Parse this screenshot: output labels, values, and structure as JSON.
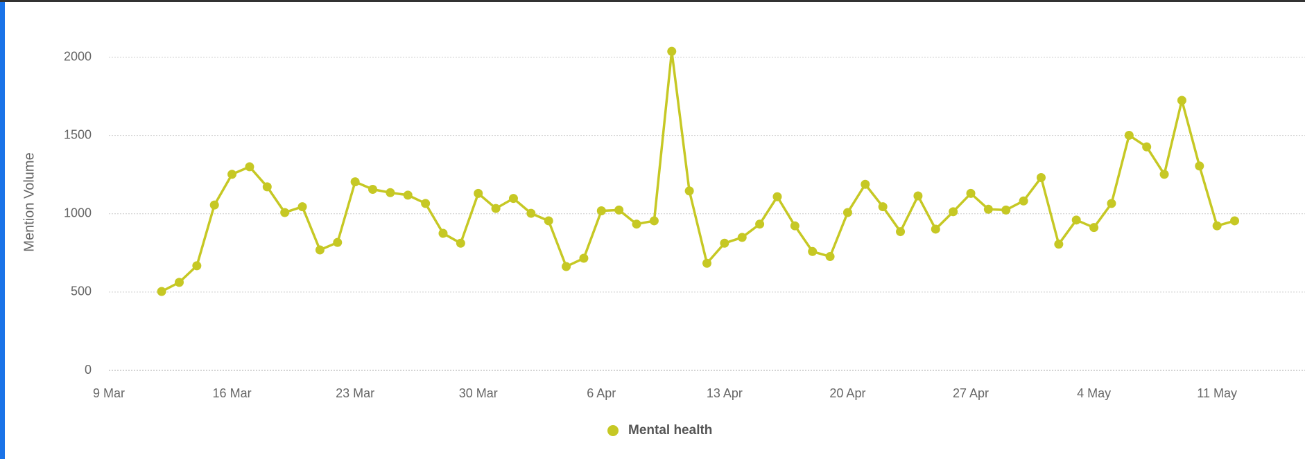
{
  "chart_data": {
    "type": "line",
    "y_label": "Mention Volume",
    "x": [
      "12 Mar",
      "13 Mar",
      "14 Mar",
      "15 Mar",
      "16 Mar",
      "17 Mar",
      "18 Mar",
      "19 Mar",
      "20 Mar",
      "21 Mar",
      "22 Mar",
      "23 Mar",
      "24 Mar",
      "25 Mar",
      "26 Mar",
      "27 Mar",
      "28 Mar",
      "29 Mar",
      "30 Mar",
      "31 Mar",
      "1 Apr",
      "2 Apr",
      "3 Apr",
      "4 Apr",
      "5 Apr",
      "6 Apr",
      "7 Apr",
      "8 Apr",
      "9 Apr",
      "10 Apr",
      "11 Apr",
      "12 Apr",
      "13 Apr",
      "14 Apr",
      "15 Apr",
      "16 Apr",
      "17 Apr",
      "18 Apr",
      "19 Apr",
      "20 Apr",
      "21 Apr",
      "22 Apr",
      "23 Apr",
      "24 Apr",
      "25 Apr",
      "26 Apr",
      "27 Apr",
      "28 Apr",
      "29 Apr",
      "30 Apr",
      "1 May",
      "2 May",
      "3 May",
      "4 May",
      "5 May",
      "6 May",
      "7 May",
      "8 May",
      "9 May",
      "10 May",
      "11 May",
      "12 May"
    ],
    "series": [
      {
        "name": "Mental health",
        "color": "#c6c824",
        "values": [
          504,
          562,
          668,
          1056,
          1252,
          1300,
          1172,
          1008,
          1045,
          769,
          817,
          1204,
          1156,
          1135,
          1119,
          1066,
          875,
          812,
          1130,
          1034,
          1098,
          1003,
          955,
          663,
          716,
          1019,
          1024,
          934,
          955,
          2037,
          1146,
          684,
          812,
          849,
          934,
          1109,
          923,
          759,
          727,
          1008,
          1188,
          1045,
          886,
          1114,
          902,
          1013,
          1130,
          1029,
          1024,
          1082,
          1231,
          806,
          960,
          912,
          1066,
          1501,
          1427,
          1252,
          1724,
          1305,
          923,
          955
        ]
      }
    ],
    "xlim": [
      "9 Mar",
      "16 May"
    ],
    "xticks": [
      "9 Mar",
      "16 Mar",
      "23 Mar",
      "30 Mar",
      "6 Apr",
      "13 Apr",
      "20 Apr",
      "27 Apr",
      "4 May",
      "11 May"
    ],
    "ylim": [
      0,
      2250
    ],
    "yticks": [
      0,
      500,
      1000,
      1500,
      2000
    ],
    "grid": true,
    "legend": "bottom"
  }
}
